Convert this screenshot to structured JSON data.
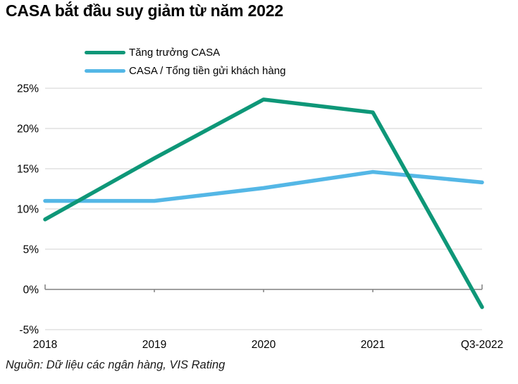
{
  "title": "CASA bắt đầu suy giảm từ năm 2022",
  "source": "Nguồn: Dữ liệu các ngân hàng, VIS Rating",
  "colors": {
    "grid": "#d9d9d9",
    "axis": "#808080",
    "text": "#000000",
    "series_green": "#0e9778",
    "series_blue": "#54b7e6"
  },
  "chart_data": {
    "type": "line",
    "title": "CASA bắt đầu suy giảm từ năm 2022",
    "categories": [
      "2018",
      "2019",
      "2020",
      "2021",
      "Q3-2022"
    ],
    "series": [
      {
        "name": "Tăng trưởng CASA",
        "color": "#0e9778",
        "values": [
          8.7,
          16.3,
          23.6,
          22.0,
          -2.2
        ]
      },
      {
        "name": "CASA / Tổng tiền gửi khách hàng",
        "color": "#54b7e6",
        "values": [
          11.0,
          11.0,
          12.6,
          14.6,
          13.3
        ]
      }
    ],
    "xlabel": "",
    "ylabel": "",
    "ylim": [
      -5,
      25
    ],
    "yticks": [
      25,
      20,
      15,
      10,
      5,
      0,
      -5
    ],
    "ytick_suffix": "%",
    "grid": "horizontal",
    "legend_position": "top-left",
    "source": "Nguồn: Dữ liệu các ngân hàng, VIS Rating"
  }
}
